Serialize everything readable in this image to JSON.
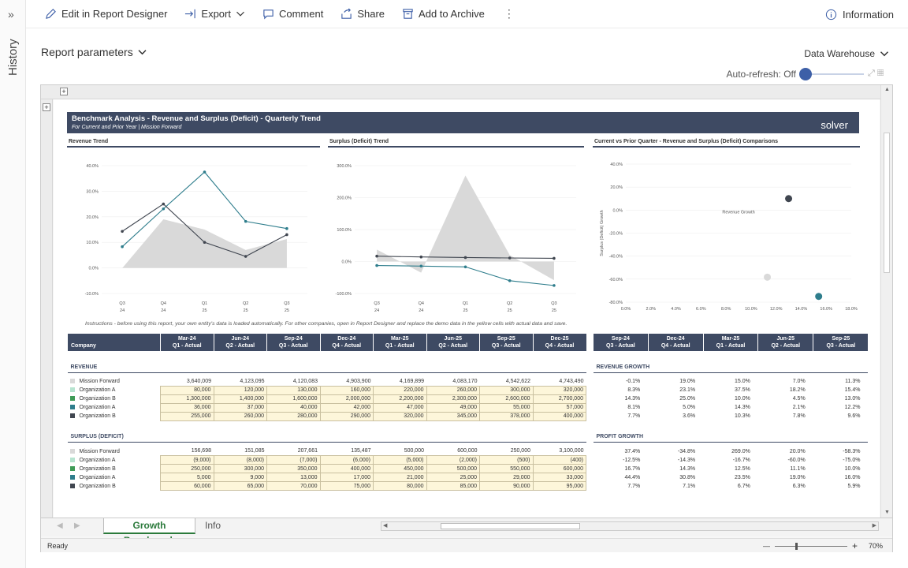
{
  "history_label": "History",
  "toolbar": {
    "edit": "Edit in Report Designer",
    "export": "Export",
    "comment": "Comment",
    "share": "Share",
    "archive": "Add to Archive",
    "info": "Information"
  },
  "params": {
    "label": "Report parameters",
    "datasource": "Data Warehouse",
    "autorefresh": "Auto-refresh: Off"
  },
  "banner": {
    "title": "Benchmark Analysis - Revenue and Surplus (Deficit) - Quarterly Trend",
    "subtitle": "For Current and Prior Year | Mission Forward",
    "logo": "solver"
  },
  "chart_data": [
    {
      "type": "line",
      "title": "Revenue Trend",
      "x": [
        "Q3 24",
        "Q4 24",
        "Q1 25",
        "Q2 25",
        "Q3 25"
      ],
      "ylim": [
        -10,
        40
      ],
      "yticks": [
        "40.0%",
        "30.0%",
        "20.0%",
        "10.0%",
        "0.0%",
        "-10.0%"
      ],
      "series": [
        {
          "name": "Mission Forward",
          "values": [
            -0.1,
            19.0,
            15.0,
            7.0,
            11.3
          ],
          "color": "#d9d9d9",
          "style": "area"
        },
        {
          "name": "Organization A",
          "values": [
            8.3,
            23.1,
            37.5,
            18.2,
            15.4
          ],
          "color": "#2e7d8c"
        },
        {
          "name": "Organization B",
          "values": [
            14.3,
            25.0,
            10.0,
            4.5,
            13.0
          ],
          "color": "#404650"
        }
      ]
    },
    {
      "type": "line",
      "title": "Surplus (Deficit) Trend",
      "x": [
        "Q3 24",
        "Q4 24",
        "Q1 25",
        "Q2 25",
        "Q3 25"
      ],
      "ylim": [
        -100,
        300
      ],
      "yticks": [
        "300.0%",
        "200.0%",
        "100.0%",
        "0.0%",
        "-100.0%"
      ],
      "series": [
        {
          "name": "Mission Forward",
          "values": [
            37.4,
            -34.8,
            269.0,
            20.0,
            -58.3
          ],
          "color": "#d9d9d9",
          "style": "area"
        },
        {
          "name": "Organization A",
          "values": [
            -12.5,
            -14.3,
            -16.7,
            -60.0,
            -75.0
          ],
          "color": "#2e7d8c"
        },
        {
          "name": "Organization B",
          "values": [
            16.7,
            14.3,
            12.5,
            11.1,
            10.0
          ],
          "color": "#404650"
        }
      ]
    },
    {
      "type": "scatter",
      "title": "Current vs Prior Quarter - Revenue and Surplus (Deficit) Comparisons",
      "xlim": [
        0,
        18
      ],
      "ylim": [
        -80,
        40
      ],
      "xticks": [
        "0.0%",
        "2.0%",
        "4.0%",
        "6.0%",
        "8.0%",
        "10.0%",
        "12.0%",
        "14.0%",
        "16.0%",
        "18.0%"
      ],
      "yticks": [
        "40.0%",
        "20.0%",
        "0.0%",
        "-20.0%",
        "-40.0%",
        "-60.0%",
        "-80.0%"
      ],
      "xlabel": "Revenue Growth",
      "ylabel": "Surplus (Deficit) Growth",
      "points": [
        {
          "x": 13.0,
          "y": 10.0,
          "color": "#404650"
        },
        {
          "x": 11.3,
          "y": -58.3,
          "color": "#d9d9d9"
        },
        {
          "x": 15.4,
          "y": -75.0,
          "color": "#2e7d8c"
        }
      ]
    }
  ],
  "instructions": "Instructions - before using this report, your own entity's data is loaded automatically.  For other companies, open in Report Designer and replace the demo data in the yellow cells with actual data and save.",
  "table": {
    "company_hdr": "Company",
    "periods": [
      [
        "Mar-24",
        "Q1 - Actual"
      ],
      [
        "Jun-24",
        "Q2 - Actual"
      ],
      [
        "Sep-24",
        "Q3 - Actual"
      ],
      [
        "Dec-24",
        "Q4 - Actual"
      ],
      [
        "Mar-25",
        "Q1 - Actual"
      ],
      [
        "Jun-25",
        "Q2 - Actual"
      ],
      [
        "Sep-25",
        "Q3 - Actual"
      ],
      [
        "Dec-25",
        "Q4 - Actual"
      ]
    ],
    "growth_periods": [
      [
        "Sep-24",
        "Q3 - Actual"
      ],
      [
        "Dec-24",
        "Q4 - Actual"
      ],
      [
        "Mar-25",
        "Q1 - Actual"
      ],
      [
        "Jun-25",
        "Q2 - Actual"
      ],
      [
        "Sep-25",
        "Q3 - Actual"
      ]
    ],
    "revenue_label": "REVENUE",
    "revenue_growth_label": "REVENUE GROWTH",
    "surplus_label": "SURPLUS (DEFICIT)",
    "profit_growth_label": "PROFIT GROWTH",
    "revenue": [
      {
        "name": "Mission Forward",
        "color": "#d9d9d9",
        "yellow": false,
        "v": [
          "3,640,009",
          "4,123,095",
          "4,120,083",
          "4,903,900",
          "4,169,899",
          "4,083,170",
          "4,542,622",
          "4,743,490"
        ],
        "g": [
          "-0.1%",
          "19.0%",
          "15.0%",
          "7.0%",
          "11.3%"
        ]
      },
      {
        "name": "Organization A",
        "color": "#b7e4d0",
        "yellow": true,
        "v": [
          "80,000",
          "120,000",
          "130,000",
          "160,000",
          "220,000",
          "260,000",
          "300,000",
          "320,000"
        ],
        "g": [
          "8.3%",
          "23.1%",
          "37.5%",
          "18.2%",
          "15.4%"
        ]
      },
      {
        "name": "Organization B",
        "color": "#3f9b57",
        "yellow": true,
        "v": [
          "1,300,000",
          "1,400,000",
          "1,600,000",
          "2,000,000",
          "2,200,000",
          "2,300,000",
          "2,600,000",
          "2,700,000"
        ],
        "g": [
          "14.3%",
          "25.0%",
          "10.0%",
          "4.5%",
          "13.0%"
        ]
      },
      {
        "name": "Organization A",
        "color": "#2e7d8c",
        "yellow": true,
        "v": [
          "36,000",
          "37,000",
          "40,000",
          "42,000",
          "47,000",
          "49,000",
          "55,000",
          "57,000"
        ],
        "g": [
          "8.1%",
          "5.0%",
          "14.3%",
          "2.1%",
          "12.2%"
        ]
      },
      {
        "name": "Organization B",
        "color": "#404650",
        "yellow": true,
        "v": [
          "255,000",
          "260,000",
          "280,000",
          "290,000",
          "320,000",
          "345,000",
          "378,000",
          "400,000"
        ],
        "g": [
          "7.7%",
          "3.6%",
          "10.3%",
          "7.8%",
          "9.6%"
        ]
      }
    ],
    "surplus": [
      {
        "name": "Mission Forward",
        "color": "#d9d9d9",
        "yellow": false,
        "v": [
          "156,698",
          "151,085",
          "207,661",
          "135,487",
          "500,000",
          "600,000",
          "250,000",
          "3,100,000"
        ],
        "g": [
          "37.4%",
          "-34.8%",
          "269.0%",
          "20.0%",
          "-58.3%"
        ]
      },
      {
        "name": "Organization A",
        "color": "#b7e4d0",
        "yellow": true,
        "v": [
          "(9,000)",
          "(8,000)",
          "(7,000)",
          "(6,000)",
          "(5,000)",
          "(2,000)",
          "(500)",
          "(400)"
        ],
        "g": [
          "-12.5%",
          "-14.3%",
          "-16.7%",
          "-60.0%",
          "-75.0%"
        ]
      },
      {
        "name": "Organization B",
        "color": "#3f9b57",
        "yellow": true,
        "v": [
          "250,000",
          "300,000",
          "350,000",
          "400,000",
          "450,000",
          "500,000",
          "550,000",
          "600,000"
        ],
        "g": [
          "16.7%",
          "14.3%",
          "12.5%",
          "11.1%",
          "10.0%"
        ]
      },
      {
        "name": "Organization A",
        "color": "#2e7d8c",
        "yellow": true,
        "v": [
          "5,000",
          "9,000",
          "13,000",
          "17,000",
          "21,000",
          "25,000",
          "29,000",
          "33,000"
        ],
        "g": [
          "44.4%",
          "30.8%",
          "23.5%",
          "19.0%",
          "16.0%"
        ]
      },
      {
        "name": "Organization B",
        "color": "#404650",
        "yellow": true,
        "v": [
          "60,000",
          "65,000",
          "70,000",
          "75,000",
          "80,000",
          "85,000",
          "90,000",
          "95,000"
        ],
        "g": [
          "7.7%",
          "7.1%",
          "6.7%",
          "6.3%",
          "5.9%"
        ]
      }
    ]
  },
  "tabs": {
    "active": "Growth Benchmark",
    "other": "Info"
  },
  "status": {
    "ready": "Ready",
    "zoom": "70%"
  }
}
